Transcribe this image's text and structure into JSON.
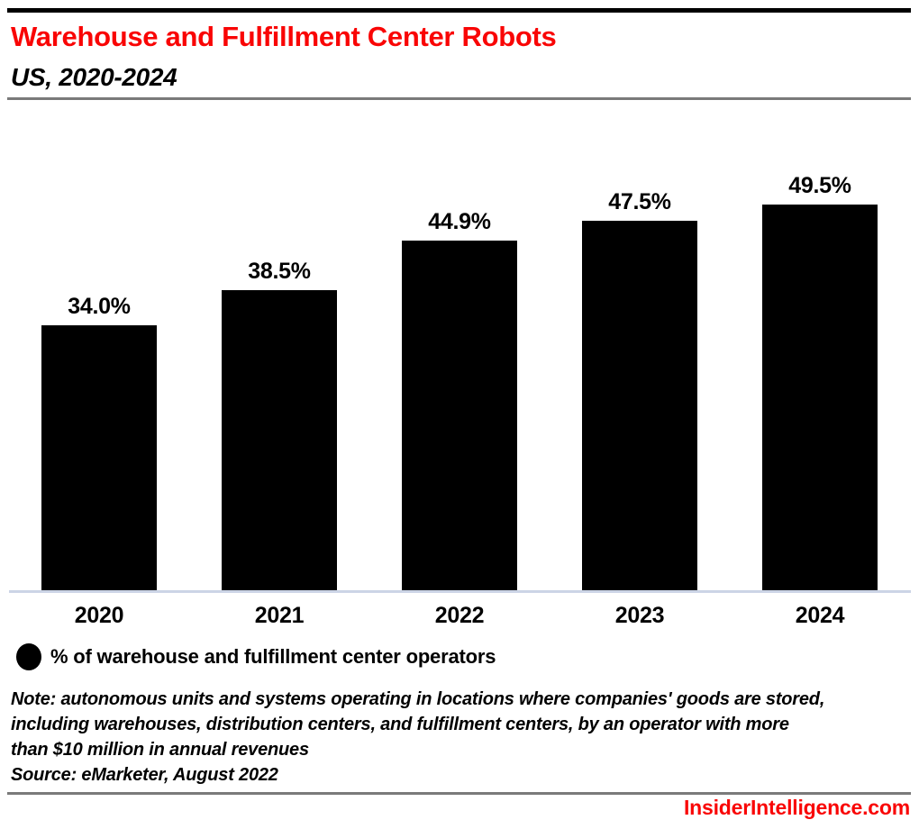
{
  "header": {
    "title": "Warehouse and Fulfillment Center Robots",
    "subtitle": "US, 2020-2024"
  },
  "chart_data": {
    "type": "bar",
    "categories": [
      "2020",
      "2021",
      "2022",
      "2023",
      "2024"
    ],
    "values": [
      34.0,
      38.5,
      44.9,
      47.5,
      49.5
    ],
    "value_labels": [
      "34.0%",
      "38.5%",
      "44.9%",
      "47.5%",
      "49.5%"
    ],
    "title": "Warehouse and Fulfillment Center Robots",
    "subtitle": "US, 2020-2024",
    "xlabel": "",
    "ylabel": "",
    "ylim": [
      0,
      53.8
    ],
    "grid": false,
    "legend_position": "bottom-left",
    "bar_color": "#000000",
    "series": [
      {
        "name": "% of warehouse and fulfillment center operators",
        "values": [
          34.0,
          38.5,
          44.9,
          47.5,
          49.5
        ]
      }
    ]
  },
  "legend": {
    "label": "% of warehouse and fulfillment center operators"
  },
  "footnote": {
    "note_lines": [
      "Note: autonomous units and systems operating in locations where companies' goods are stored,",
      "including warehouses, distribution centers, and fulfillment centers, by an operator with more",
      "than $10 million in annual revenues"
    ],
    "source": "Source: eMarketer, August 2022"
  },
  "footer": {
    "site": "InsiderIntelligence.com"
  },
  "colors": {
    "accent_red": "#f90505",
    "bar_black": "#000000",
    "rule_gray": "#7a7a7a",
    "axis_line": "#ccd4e6"
  }
}
